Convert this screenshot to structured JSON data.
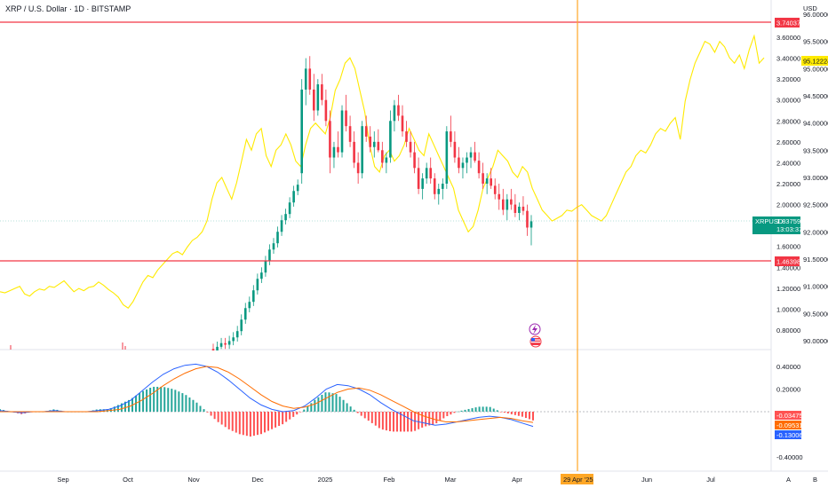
{
  "header": {
    "title": "XRP / U.S. Dollar · 1D · BITSTAMP"
  },
  "colors": {
    "up": "#089981",
    "down": "#f23645",
    "overlay": "#ffea00",
    "hline": "#f23645",
    "vline": "#ffa726",
    "macd": "#2962ff",
    "signal": "#ff6d00",
    "hist_up": "#26a69a",
    "hist_down": "#ff5252",
    "text": "#131722"
  },
  "price_axis": {
    "unit": "USD",
    "ticks": [
      "3.60000",
      "3.40000",
      "3.20000",
      "3.00000",
      "2.80000",
      "2.60000",
      "2.40000",
      "2.20000",
      "2.00000",
      "1.80000",
      "1.60000",
      "1.40000",
      "1.20000",
      "1.00000",
      "0.80000"
    ],
    "level_badges": {
      "upper": "3.74037",
      "lower": "1.46398"
    },
    "last": {
      "symbol": "XRPUSD",
      "price": "1.83759",
      "countdown": "13:03:37"
    }
  },
  "overlay_axis": {
    "ticks": [
      "96.00000",
      "95.50000",
      "95.00000",
      "94.50000",
      "94.00000",
      "93.50000",
      "93.00000",
      "92.50000",
      "92.00000",
      "91.50000",
      "91.00000",
      "90.50000",
      "90.00000"
    ],
    "last": "95.12224"
  },
  "macd_axis": {
    "ticks": [
      "0.40000",
      "0.20000",
      "-0.40000"
    ],
    "badges": {
      "histogram": "-0.03475",
      "signal": "-0.09531",
      "macd": "-0.13006"
    }
  },
  "time_axis": {
    "labels": [
      "Sep",
      "Oct",
      "Nov",
      "Dec",
      "2025",
      "Feb",
      "Mar",
      "Apr",
      "Jun",
      "Jul"
    ],
    "cursor_label": "29 Apr '25"
  },
  "footer_buttons": {
    "auto": "A",
    "log": "B"
  },
  "chart_data": {
    "type": "candlestick",
    "title": "XRP / U.S. Dollar · 1D · BITSTAMP",
    "price_range": [
      0.72,
      3.85
    ],
    "overlay_range": [
      89.8,
      96.05
    ],
    "horizontal_levels": [
      3.74037,
      1.46398
    ],
    "vertical_marker": "29 Apr '25",
    "candles": [
      [
        2.3,
        3.2,
        2.2,
        3.1
      ],
      [
        3.1,
        3.4,
        2.95,
        3.3
      ],
      [
        3.3,
        3.42,
        3.05,
        3.1
      ],
      [
        3.1,
        3.25,
        2.8,
        2.9
      ],
      [
        2.9,
        3.2,
        2.85,
        3.15
      ],
      [
        3.15,
        3.25,
        2.95,
        3.0
      ],
      [
        3.0,
        3.1,
        2.75,
        2.8
      ],
      [
        2.8,
        2.9,
        2.3,
        2.45
      ],
      [
        2.45,
        2.6,
        2.35,
        2.55
      ],
      [
        2.55,
        2.7,
        2.45,
        2.5
      ],
      [
        2.5,
        2.95,
        2.45,
        2.9
      ],
      [
        2.9,
        3.05,
        2.7,
        2.75
      ],
      [
        2.75,
        2.85,
        2.55,
        2.6
      ],
      [
        2.6,
        2.7,
        2.35,
        2.4
      ],
      [
        2.4,
        2.5,
        2.2,
        2.3
      ],
      [
        2.3,
        2.8,
        2.25,
        2.75
      ],
      [
        2.75,
        2.85,
        2.6,
        2.65
      ],
      [
        2.65,
        2.75,
        2.5,
        2.55
      ],
      [
        2.55,
        2.7,
        2.45,
        2.6
      ],
      [
        2.6,
        2.72,
        2.5,
        2.52
      ],
      [
        2.52,
        2.6,
        2.35,
        2.4
      ],
      [
        2.4,
        2.5,
        2.3,
        2.45
      ],
      [
        2.45,
        2.9,
        2.4,
        2.8
      ],
      [
        2.8,
        3.0,
        2.7,
        2.95
      ],
      [
        2.95,
        3.05,
        2.8,
        2.85
      ],
      [
        2.85,
        2.95,
        2.65,
        2.7
      ],
      [
        2.7,
        2.8,
        2.55,
        2.6
      ],
      [
        2.6,
        2.7,
        2.45,
        2.5
      ],
      [
        2.5,
        2.6,
        2.3,
        2.35
      ],
      [
        2.35,
        2.45,
        2.1,
        2.15
      ],
      [
        2.15,
        2.3,
        2.05,
        2.25
      ],
      [
        2.25,
        2.4,
        2.2,
        2.35
      ],
      [
        2.35,
        2.45,
        2.2,
        2.25
      ],
      [
        2.25,
        2.3,
        2.05,
        2.1
      ],
      [
        2.1,
        2.2,
        2.0,
        2.15
      ],
      [
        2.15,
        2.25,
        2.05,
        2.2
      ],
      [
        2.2,
        2.75,
        2.15,
        2.7
      ],
      [
        2.7,
        2.85,
        2.55,
        2.6
      ],
      [
        2.6,
        2.7,
        2.4,
        2.45
      ],
      [
        2.45,
        2.55,
        2.3,
        2.35
      ],
      [
        2.35,
        2.45,
        2.25,
        2.4
      ],
      [
        2.4,
        2.5,
        2.3,
        2.45
      ],
      [
        2.45,
        2.55,
        2.35,
        2.5
      ],
      [
        2.5,
        2.6,
        2.4,
        2.42
      ],
      [
        2.42,
        2.5,
        2.25,
        2.3
      ],
      [
        2.3,
        2.4,
        2.15,
        2.2
      ],
      [
        2.2,
        2.3,
        2.1,
        2.25
      ],
      [
        2.25,
        2.35,
        2.15,
        2.18
      ],
      [
        2.18,
        2.25,
        2.05,
        2.1
      ],
      [
        2.1,
        2.2,
        1.95,
        2.05
      ],
      [
        2.05,
        2.15,
        1.9,
        1.95
      ],
      [
        1.95,
        2.1,
        1.85,
        2.05
      ],
      [
        2.05,
        2.15,
        1.95,
        2.0
      ],
      [
        2.0,
        2.1,
        1.88,
        1.92
      ],
      [
        1.92,
        2.02,
        1.85,
        1.98
      ],
      [
        1.98,
        2.08,
        1.9,
        1.94
      ],
      [
        1.94,
        2.0,
        1.7,
        1.78
      ],
      [
        1.78,
        1.9,
        1.61,
        1.84
      ]
    ],
    "overlay": [
      90.9,
      90.88,
      90.92,
      90.96,
      91.0,
      90.86,
      90.82,
      90.9,
      90.95,
      90.93,
      91.0,
      90.98,
      91.04,
      91.1,
      91.0,
      90.9,
      90.96,
      90.92,
      90.98,
      91.0,
      91.08,
      91.02,
      90.94,
      90.88,
      90.8,
      90.66,
      90.6,
      90.72,
      90.9,
      91.08,
      91.2,
      91.16,
      91.3,
      91.4,
      91.5,
      91.6,
      91.64,
      91.58,
      91.72,
      91.84,
      91.9,
      92.0,
      92.2,
      92.6,
      92.9,
      93.0,
      92.8,
      92.6,
      92.9,
      93.3,
      93.7,
      93.5,
      93.8,
      93.9,
      93.4,
      93.2,
      93.5,
      93.6,
      93.8,
      93.6,
      93.3,
      93.2,
      93.6,
      93.9,
      94.0,
      93.9,
      93.8,
      94.1,
      94.6,
      94.8,
      95.1,
      95.2,
      95.0,
      94.6,
      94.2,
      93.6,
      93.2,
      93.1,
      93.4,
      93.5,
      93.3,
      93.4,
      93.6,
      93.9,
      93.7,
      93.5,
      93.4,
      93.8,
      93.6,
      93.4,
      93.2,
      93.0,
      92.8,
      92.4,
      92.2,
      92.0,
      92.1,
      92.4,
      92.8,
      93.0,
      93.2,
      93.5,
      93.4,
      93.3,
      93.1,
      93.0,
      93.2,
      93.1,
      92.8,
      92.6,
      92.4,
      92.3,
      92.2,
      92.25,
      92.3,
      92.4,
      92.38,
      92.45,
      92.5,
      92.4,
      92.3,
      92.25,
      92.2,
      92.3,
      92.5,
      92.7,
      92.9,
      93.1,
      93.2,
      93.4,
      93.5,
      93.45,
      93.6,
      93.8,
      93.9,
      93.85,
      94.0,
      94.1,
      93.7,
      94.4,
      94.8,
      95.1,
      95.3,
      95.5,
      95.45,
      95.3,
      95.5,
      95.4,
      95.2,
      95.1,
      95.25,
      95.0,
      95.35,
      95.6,
      95.1,
      95.2
    ],
    "macd": [
      0.01,
      0.0,
      -0.01,
      0.0,
      0.0,
      0.01,
      0.0,
      0.0,
      0.0,
      0.01,
      0.02,
      0.05,
      0.1,
      0.18,
      0.26,
      0.33,
      0.38,
      0.41,
      0.42,
      0.4,
      0.35,
      0.28,
      0.2,
      0.12,
      0.06,
      0.02,
      0.0,
      0.01,
      0.05,
      0.12,
      0.2,
      0.24,
      0.23,
      0.2,
      0.15,
      0.08,
      0.02,
      -0.03,
      -0.08,
      -0.1,
      -0.12,
      -0.11,
      -0.09,
      -0.07,
      -0.05,
      -0.04,
      -0.05,
      -0.07,
      -0.1,
      -0.13
    ],
    "signal": [
      0.0,
      0.0,
      0.0,
      0.0,
      0.0,
      0.0,
      0.0,
      0.0,
      0.0,
      0.0,
      0.01,
      0.02,
      0.05,
      0.1,
      0.16,
      0.23,
      0.29,
      0.34,
      0.38,
      0.4,
      0.39,
      0.35,
      0.29,
      0.22,
      0.15,
      0.09,
      0.05,
      0.03,
      0.04,
      0.07,
      0.12,
      0.17,
      0.2,
      0.21,
      0.19,
      0.15,
      0.1,
      0.05,
      0.0,
      -0.04,
      -0.07,
      -0.09,
      -0.09,
      -0.08,
      -0.07,
      -0.06,
      -0.05,
      -0.06,
      -0.08,
      -0.095
    ]
  }
}
